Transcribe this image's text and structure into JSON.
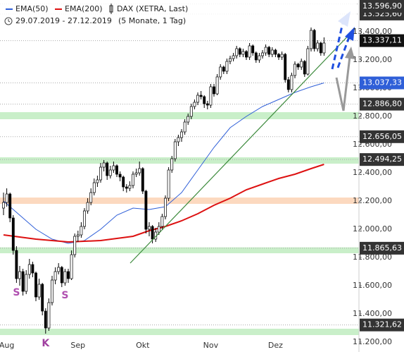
{
  "chart_data": {
    "type": "candlestick",
    "title": "DAX (XETRA, Last)",
    "subtitle": "29.07.2019 - 27.12.2019",
    "period": "(5 Monate, 1 Tag)",
    "categories": [
      null,
      "Aug",
      null,
      null,
      null,
      null,
      null,
      null,
      null,
      null,
      null,
      null,
      null,
      null,
      null,
      null,
      null,
      null,
      null,
      null,
      null,
      null,
      null,
      "Sep",
      null,
      null,
      null,
      null,
      null,
      null,
      null,
      null,
      null,
      null,
      null,
      null,
      null,
      null,
      null,
      null,
      null,
      null,
      null,
      "Okt",
      null,
      null,
      null,
      null,
      null,
      null,
      null,
      null,
      null,
      null,
      null,
      null,
      null,
      null,
      null,
      null,
      null,
      null,
      null,
      null,
      "Nov",
      null,
      null,
      null,
      null,
      null,
      null,
      null,
      null,
      null,
      null,
      null,
      null,
      null,
      null,
      null,
      null,
      null,
      null,
      null,
      "Dez",
      null,
      null,
      null,
      null,
      null,
      null,
      null,
      null,
      null,
      null,
      null,
      null,
      null,
      null,
      null
    ],
    "ohlc": [
      [
        12150,
        12260,
        12100,
        12190
      ],
      [
        12190,
        12290,
        12160,
        12250
      ],
      [
        12250,
        12260,
        12050,
        12080
      ],
      [
        12080,
        12100,
        11820,
        11850
      ],
      [
        11850,
        11880,
        11620,
        11650
      ],
      [
        11650,
        11740,
        11600,
        11700
      ],
      [
        11700,
        11720,
        11530,
        11560
      ],
      [
        11560,
        11710,
        11540,
        11680
      ],
      [
        11680,
        11790,
        11650,
        11750
      ],
      [
        11750,
        11770,
        11660,
        11690
      ],
      [
        11690,
        11700,
        11490,
        11520
      ],
      [
        11520,
        11650,
        11500,
        11610
      ],
      [
        11610,
        11620,
        11390,
        11420
      ],
      [
        11420,
        11440,
        11260,
        11300
      ],
      [
        11300,
        11510,
        11280,
        11480
      ],
      [
        11480,
        11670,
        11460,
        11640
      ],
      [
        11640,
        11730,
        11610,
        11700
      ],
      [
        11700,
        11760,
        11680,
        11730
      ],
      [
        11730,
        11740,
        11590,
        11620
      ],
      [
        11620,
        11720,
        11600,
        11700
      ],
      [
        11700,
        11720,
        11620,
        11650
      ],
      [
        11650,
        11850,
        11640,
        11820
      ],
      [
        11820,
        11970,
        11800,
        11950
      ],
      [
        11950,
        11990,
        11910,
        11960
      ],
      [
        11960,
        12050,
        11940,
        12020
      ],
      [
        12020,
        12150,
        12000,
        12130
      ],
      [
        12130,
        12220,
        12110,
        12190
      ],
      [
        12190,
        12290,
        12170,
        12260
      ],
      [
        12260,
        12360,
        12240,
        12330
      ],
      [
        12330,
        12380,
        12300,
        12350
      ],
      [
        12350,
        12470,
        12330,
        12440
      ],
      [
        12440,
        12490,
        12410,
        12470
      ],
      [
        12470,
        12480,
        12350,
        12380
      ],
      [
        12380,
        12450,
        12360,
        12420
      ],
      [
        12420,
        12480,
        12400,
        12450
      ],
      [
        12450,
        12460,
        12370,
        12390
      ],
      [
        12390,
        12410,
        12340,
        12370
      ],
      [
        12370,
        12380,
        12270,
        12300
      ],
      [
        12300,
        12320,
        12260,
        12290
      ],
      [
        12290,
        12340,
        12270,
        12310
      ],
      [
        12310,
        12410,
        12290,
        12390
      ],
      [
        12390,
        12430,
        12370,
        12400
      ],
      [
        12400,
        12480,
        12380,
        12430
      ],
      [
        12430,
        12440,
        12250,
        12270
      ],
      [
        12270,
        12280,
        11970,
        12000
      ],
      [
        12000,
        12050,
        11950,
        12020
      ],
      [
        12020,
        12030,
        11900,
        11930
      ],
      [
        11930,
        12010,
        11910,
        11980
      ],
      [
        11980,
        12050,
        11960,
        12020
      ],
      [
        12020,
        12110,
        12000,
        12090
      ],
      [
        12090,
        12240,
        12070,
        12220
      ],
      [
        12220,
        12440,
        12200,
        12420
      ],
      [
        12420,
        12520,
        12400,
        12500
      ],
      [
        12500,
        12640,
        12480,
        12620
      ],
      [
        12620,
        12670,
        12590,
        12650
      ],
      [
        12650,
        12710,
        12620,
        12690
      ],
      [
        12690,
        12780,
        12670,
        12760
      ],
      [
        12760,
        12820,
        12740,
        12800
      ],
      [
        12800,
        12890,
        12780,
        12870
      ],
      [
        12870,
        12920,
        12850,
        12900
      ],
      [
        12900,
        12970,
        12880,
        12950
      ],
      [
        12950,
        12980,
        12920,
        12940
      ],
      [
        12940,
        12950,
        12860,
        12890
      ],
      [
        12890,
        12910,
        12850,
        12880
      ],
      [
        12880,
        13030,
        12860,
        13010
      ],
      [
        13010,
        13030,
        12940,
        12960
      ],
      [
        12960,
        13100,
        12950,
        13080
      ],
      [
        13080,
        13170,
        13060,
        13150
      ],
      [
        13150,
        13160,
        13100,
        13120
      ],
      [
        13120,
        13210,
        13100,
        13190
      ],
      [
        13190,
        13230,
        13170,
        13210
      ],
      [
        13210,
        13250,
        13190,
        13230
      ],
      [
        13230,
        13300,
        13210,
        13280
      ],
      [
        13280,
        13290,
        13220,
        13240
      ],
      [
        13240,
        13280,
        13220,
        13260
      ],
      [
        13260,
        13270,
        13200,
        13220
      ],
      [
        13220,
        13320,
        13200,
        13300
      ],
      [
        13300,
        13310,
        13230,
        13250
      ],
      [
        13250,
        13260,
        13180,
        13200
      ],
      [
        13200,
        13250,
        13180,
        13230
      ],
      [
        13230,
        13270,
        13210,
        13250
      ],
      [
        13250,
        13310,
        13230,
        13290
      ],
      [
        13290,
        13300,
        13220,
        13240
      ],
      [
        13240,
        13290,
        13220,
        13270
      ],
      [
        13270,
        13280,
        13220,
        13240
      ],
      [
        13240,
        13250,
        13200,
        13220
      ],
      [
        13220,
        13260,
        13200,
        13240
      ],
      [
        13240,
        13250,
        13040,
        13060
      ],
      [
        13060,
        13080,
        12970,
        12990
      ],
      [
        12990,
        13110,
        12970,
        13090
      ],
      [
        13090,
        13190,
        13070,
        13170
      ],
      [
        13170,
        13180,
        13130,
        13150
      ],
      [
        13150,
        13210,
        13130,
        13190
      ],
      [
        13190,
        13200,
        13080,
        13100
      ],
      [
        13100,
        13300,
        13090,
        13280
      ],
      [
        13280,
        13430,
        13260,
        13410
      ],
      [
        13410,
        13420,
        13260,
        13280
      ],
      [
        13280,
        13340,
        13260,
        13320
      ],
      [
        13320,
        13330,
        13230,
        13250
      ],
      [
        13250,
        13360,
        13230,
        13320
      ]
    ],
    "series": [
      {
        "name": "EMA(50)",
        "color": "#2f5fd8",
        "x": [
          0,
          5,
          10,
          15,
          20,
          25,
          30,
          35,
          40,
          45,
          50,
          55,
          60,
          65,
          70,
          75,
          80,
          85,
          90,
          95,
          99
        ],
        "values": [
          12200,
          12100,
          12000,
          11930,
          11900,
          11920,
          12000,
          12100,
          12150,
          12140,
          12160,
          12260,
          12420,
          12580,
          12720,
          12800,
          12870,
          12920,
          12970,
          13010,
          13037.33
        ]
      },
      {
        "name": "EMA(200)",
        "color": "#dd1111",
        "x": [
          0,
          10,
          20,
          30,
          40,
          45,
          50,
          55,
          60,
          65,
          70,
          75,
          80,
          85,
          90,
          95,
          99
        ],
        "values": [
          11960,
          11930,
          11910,
          11920,
          11950,
          11990,
          12020,
          12060,
          12110,
          12170,
          12220,
          12280,
          12320,
          12360,
          12390,
          12430,
          12460
        ]
      }
    ],
    "ylim": [
      11130,
      13625
    ],
    "yticks": [
      {
        "value": 11200,
        "label": "11.200,00"
      },
      {
        "value": 11400,
        "label": "11.400,00"
      },
      {
        "value": 11600,
        "label": "11.600,00"
      },
      {
        "value": 11800,
        "label": "11.800,00"
      },
      {
        "value": 12000,
        "label": "12.000,00"
      },
      {
        "value": 12200,
        "label": "12.200,00"
      },
      {
        "value": 12400,
        "label": "12.400,00"
      },
      {
        "value": 12600,
        "label": "12.600,00"
      },
      {
        "value": 12800,
        "label": "12.800,00"
      },
      {
        "value": 13000,
        "label": "13.000,00"
      },
      {
        "value": 13200,
        "label": "13.200,00"
      },
      {
        "value": 13400,
        "label": "13.400,00"
      }
    ],
    "levels": [
      {
        "value": 13525.6,
        "label": "13.525,60",
        "color": "#333333"
      },
      {
        "value": 13596.9,
        "label": "13.596,90",
        "color": "#333333"
      },
      {
        "value": 13337.11,
        "label": "13.337,11",
        "color": "#111111"
      },
      {
        "value": 13037.33,
        "label": "13.037,33",
        "color": "#2f5fd8"
      },
      {
        "value": 12886.8,
        "label": "12.886,80",
        "color": "#333333"
      },
      {
        "value": 12656.05,
        "label": "12.656,05",
        "color": "#333333"
      },
      {
        "value": 12494.25,
        "label": "12.494,25",
        "color": "#333333"
      },
      {
        "value": 11865.63,
        "label": "11.865,63",
        "color": "#333333"
      },
      {
        "value": 11321.62,
        "label": "11.321,62",
        "color": "#333333"
      }
    ],
    "zones": [
      {
        "from": 12780,
        "to": 12830,
        "color": "#c9efc9"
      },
      {
        "from": 12465,
        "to": 12510,
        "color": "#c9efc9"
      },
      {
        "from": 12180,
        "to": 12225,
        "color": "#fcd9bf"
      },
      {
        "from": 11830,
        "to": 11872,
        "color": "#c9efc9"
      },
      {
        "from": 11250,
        "to": 11295,
        "color": "#c9efc9"
      }
    ],
    "annotations": [
      {
        "text": "S",
        "candle": 4,
        "color": "#b04fb0"
      },
      {
        "text": "K",
        "candle": 13,
        "color": "#a040a0"
      },
      {
        "text": "S",
        "candle": 19,
        "color": "#b04fb0"
      }
    ]
  }
}
